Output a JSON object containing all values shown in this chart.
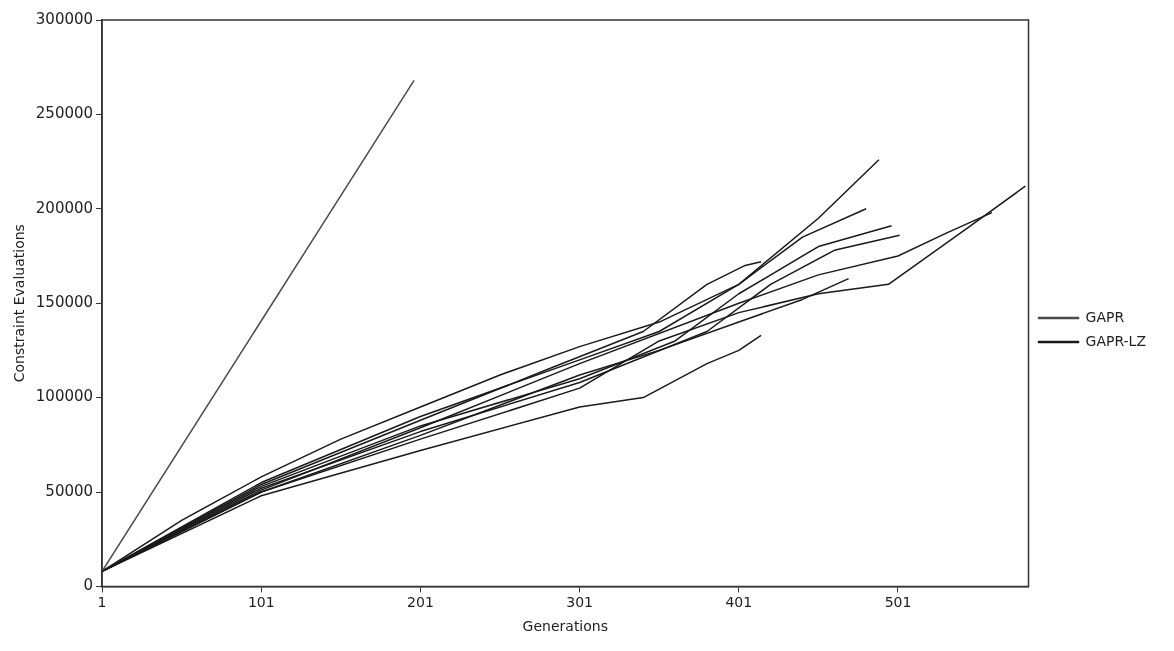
{
  "chart_data": {
    "type": "line",
    "xlabel": "Generations",
    "ylabel": "Constraint Evaluations",
    "xlim": [
      1,
      583
    ],
    "xticks": [
      1,
      101,
      201,
      301,
      401,
      501
    ],
    "ylim": [
      0,
      300000
    ],
    "yticks": [
      0,
      50000,
      100000,
      150000,
      200000,
      250000,
      300000
    ],
    "grid": false,
    "legend": "right",
    "marker": "none",
    "line_style": "solid",
    "series": [
      {
        "name": "GAPR",
        "color": "#4a4a4a",
        "x": [
          1,
          197
        ],
        "values": [
          8000,
          268000
        ]
      },
      {
        "name": "GAPR-LZ",
        "color": "#1a1a1a",
        "x": [
          1,
          51,
          101,
          151,
          201,
          251,
          301,
          351,
          401,
          451,
          489
        ],
        "values": [
          8000,
          35000,
          58000,
          78000,
          95000,
          112000,
          127000,
          140000,
          160000,
          195000,
          226000
        ]
      },
      {
        "color": "#1a1a1a",
        "x": [
          1,
          101,
          201,
          301,
          361,
          401,
          451,
          497
        ],
        "values": [
          8000,
          53000,
          85000,
          110000,
          130000,
          155000,
          180000,
          191000
        ]
      },
      {
        "color": "#1a1a1a",
        "x": [
          1,
          101,
          201,
          301,
          381,
          421,
          461,
          502
        ],
        "values": [
          8000,
          52000,
          82000,
          108000,
          135000,
          160000,
          178000,
          186000
        ]
      },
      {
        "color": "#1a1a1a",
        "x": [
          1,
          101,
          201,
          301,
          351,
          401,
          441,
          470
        ],
        "values": [
          8000,
          50000,
          80000,
          112000,
          125000,
          140000,
          152000,
          163000
        ]
      },
      {
        "color": "#1a1a1a",
        "x": [
          1,
          101,
          201,
          281,
          341,
          381,
          405,
          415
        ],
        "values": [
          8000,
          54000,
          88000,
          115000,
          135000,
          160000,
          170000,
          172000
        ]
      },
      {
        "color": "#1a1a1a",
        "x": [
          1,
          101,
          201,
          301,
          341,
          381,
          401,
          415
        ],
        "values": [
          8000,
          48000,
          72000,
          95000,
          100000,
          118000,
          125000,
          133000
        ]
      },
      {
        "color": "#1a1a1a",
        "x": [
          1,
          101,
          201,
          301,
          351,
          401,
          451,
          495,
          545,
          581
        ],
        "values": [
          8000,
          50000,
          78000,
          105000,
          130000,
          145000,
          155000,
          160000,
          190000,
          212000
        ]
      },
      {
        "color": "#1a1a1a",
        "x": [
          1,
          101,
          201,
          301,
          401,
          451,
          501,
          531,
          560
        ],
        "values": [
          8000,
          51000,
          84000,
          118000,
          150000,
          165000,
          175000,
          187000,
          198000
        ]
      },
      {
        "color": "#1a1a1a",
        "x": [
          1,
          101,
          201,
          301,
          351,
          401,
          441,
          481
        ],
        "values": [
          8000,
          55000,
          90000,
          120000,
          135000,
          160000,
          185000,
          200000
        ]
      }
    ]
  }
}
